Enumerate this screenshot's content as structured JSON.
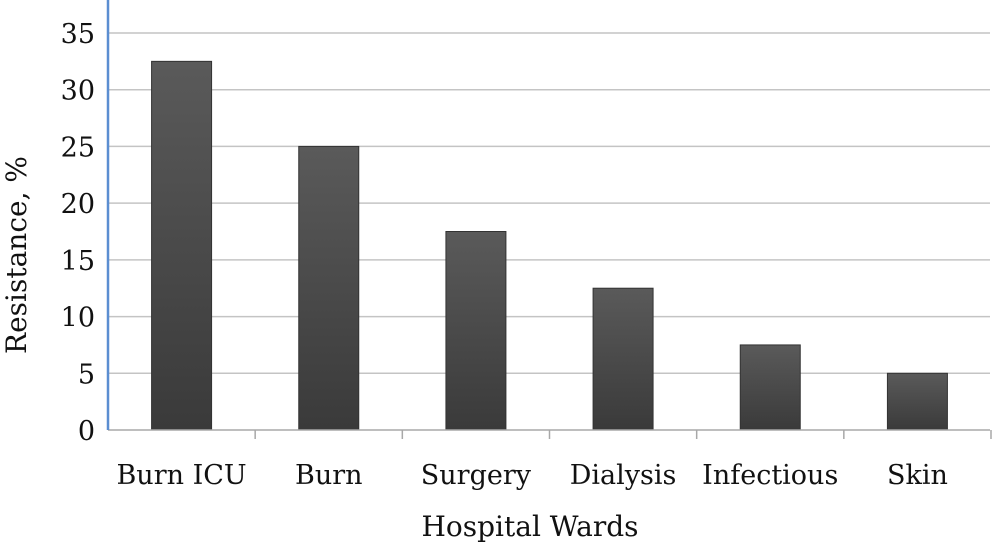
{
  "chart_data": {
    "type": "bar",
    "categories": [
      "Burn ICU",
      "Burn",
      "Surgery",
      "Dialysis",
      "Infectious",
      "Skin"
    ],
    "values": [
      32.5,
      25,
      17.5,
      12.5,
      7.5,
      5
    ],
    "xlabel": "Hospital Wards",
    "ylabel": "Resistance, %",
    "ylim": [
      0,
      35
    ],
    "yticks": [
      0,
      5,
      10,
      15,
      20,
      25,
      30,
      35
    ],
    "grid": "horizontal",
    "bar_color": "#4a4a4a",
    "axis_color": "#5b8ed1"
  }
}
